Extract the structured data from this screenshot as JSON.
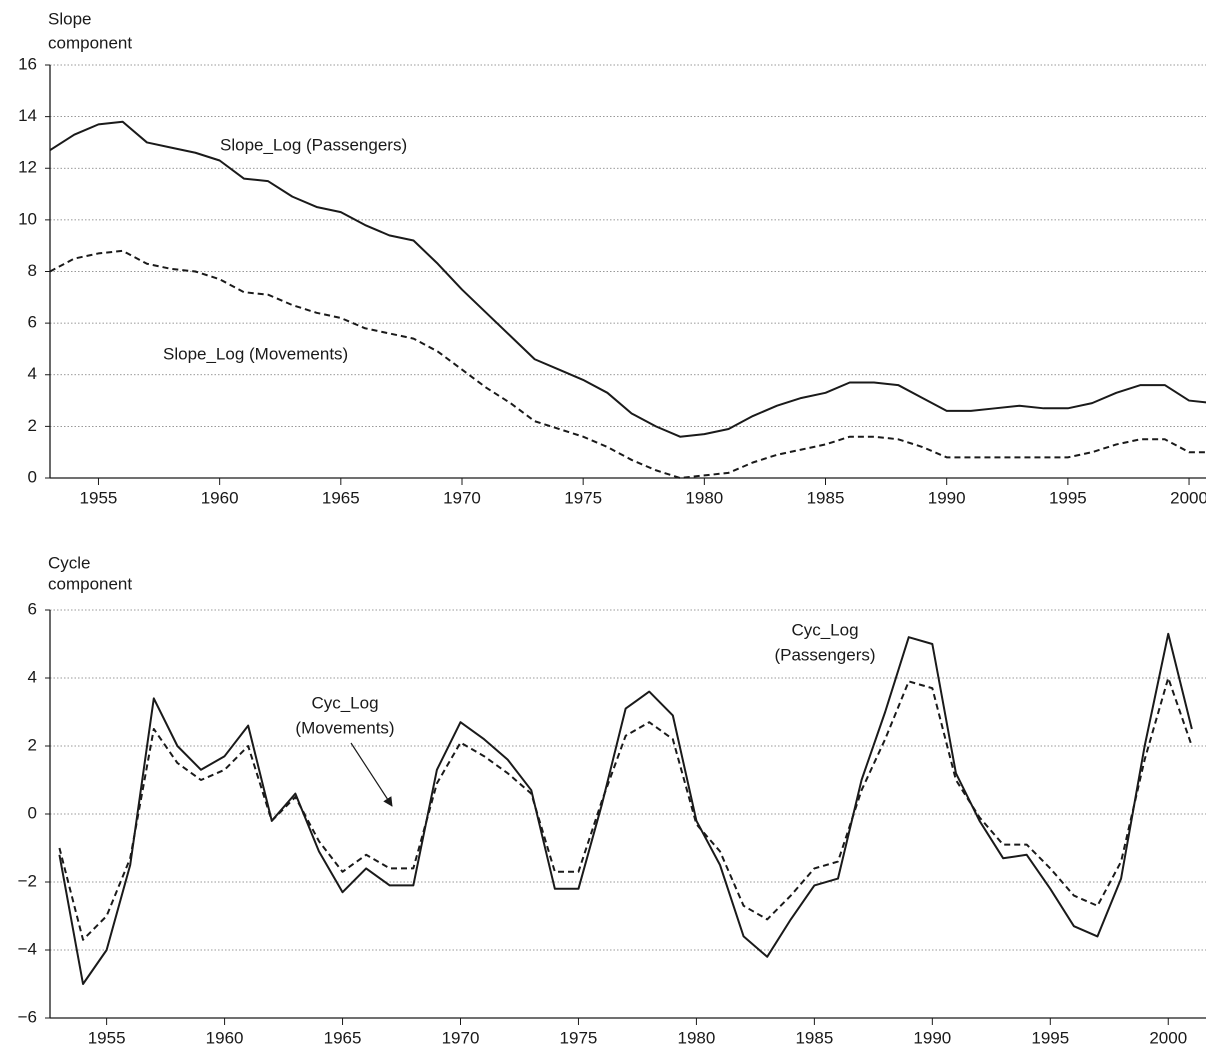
{
  "chart_data": [
    {
      "type": "line",
      "ylabel": [
        "Slope",
        "component"
      ],
      "x": [
        1953,
        1954,
        1955,
        1956,
        1957,
        1958,
        1959,
        1960,
        1961,
        1962,
        1963,
        1964,
        1965,
        1966,
        1967,
        1968,
        1969,
        1970,
        1971,
        1972,
        1973,
        1974,
        1975,
        1976,
        1977,
        1978,
        1979,
        1980,
        1981,
        1982,
        1983,
        1984,
        1985,
        1986,
        1987,
        1988,
        1989,
        1990,
        1991,
        1992,
        1993,
        1994,
        1995,
        1996,
        1997,
        1998,
        1999,
        2000,
        2001
      ],
      "xlim": [
        1953,
        2000.7
      ],
      "xticks": [
        1955,
        1960,
        1965,
        1970,
        1975,
        1980,
        1985,
        1990,
        1995,
        2000
      ],
      "ylim": [
        0,
        16
      ],
      "yticks": [
        0,
        2,
        4,
        6,
        8,
        10,
        12,
        14,
        16
      ],
      "grid": true,
      "series": [
        {
          "label": [
            "Slope_Log (Passengers)"
          ],
          "color": "#1a1a1a",
          "dashed": false,
          "values": [
            12.7,
            13.3,
            13.7,
            13.8,
            13.0,
            12.8,
            12.6,
            12.3,
            11.6,
            11.5,
            10.9,
            10.5,
            10.3,
            9.8,
            9.4,
            9.2,
            8.3,
            7.3,
            6.4,
            5.5,
            4.6,
            4.2,
            3.8,
            3.3,
            2.5,
            2.0,
            1.6,
            1.7,
            1.9,
            2.4,
            2.8,
            3.1,
            3.3,
            3.7,
            3.7,
            3.6,
            3.1,
            2.6,
            2.6,
            2.7,
            2.8,
            2.7,
            2.7,
            2.9,
            3.3,
            3.6,
            3.6,
            3.0,
            2.9
          ]
        },
        {
          "label": [
            "Slope_Log (Movements)"
          ],
          "color": "#1a1a1a",
          "dashed": true,
          "values": [
            8.0,
            8.5,
            8.7,
            8.8,
            8.3,
            8.1,
            8.0,
            7.7,
            7.2,
            7.1,
            6.7,
            6.4,
            6.2,
            5.8,
            5.6,
            5.4,
            4.9,
            4.2,
            3.5,
            2.9,
            2.2,
            1.9,
            1.6,
            1.2,
            0.7,
            0.3,
            0,
            0.1,
            0.2,
            0.6,
            0.9,
            1.1,
            1.3,
            1.6,
            1.6,
            1.5,
            1.2,
            0.8,
            0.8,
            0.8,
            0.8,
            0.8,
            0.8,
            1.0,
            1.3,
            1.5,
            1.5,
            1.0,
            1.0
          ]
        }
      ]
    },
    {
      "type": "line",
      "ylabel": [
        "Cycle",
        "component"
      ],
      "x": [
        1953,
        1954,
        1955,
        1956,
        1957,
        1958,
        1959,
        1960,
        1961,
        1962,
        1963,
        1964,
        1965,
        1966,
        1967,
        1968,
        1969,
        1970,
        1971,
        1972,
        1973,
        1974,
        1975,
        1976,
        1977,
        1978,
        1979,
        1980,
        1981,
        1982,
        1983,
        1984,
        1985,
        1986,
        1987,
        1988,
        1989,
        1990,
        1991,
        1992,
        1993,
        1994,
        1995,
        1996,
        1997,
        1998,
        1999,
        2000,
        2001
      ],
      "xlim": [
        1952.6,
        2001.6
      ],
      "xticks": [
        1955,
        1960,
        1965,
        1970,
        1975,
        1980,
        1985,
        1990,
        1995,
        2000
      ],
      "ylim": [
        -6,
        6
      ],
      "yticks": [
        {
          "value": -6,
          "label": "−6"
        },
        {
          "value": -4,
          "label": "−4"
        },
        {
          "value": -2,
          "label": "−2"
        },
        0,
        2,
        4,
        6
      ],
      "grid": true,
      "series": [
        {
          "label": [
            "Cyc_Log",
            "(Passengers)"
          ],
          "color": "#1a1a1a",
          "dashed": false,
          "values": [
            -1.2,
            -5.0,
            -4.0,
            -1.5,
            3.4,
            2.0,
            1.3,
            1.7,
            2.6,
            -0.2,
            0.6,
            -1.1,
            -2.3,
            -1.6,
            -2.1,
            -2.1,
            1.3,
            2.7,
            2.2,
            1.6,
            0.7,
            -2.2,
            -2.2,
            0.3,
            3.1,
            3.6,
            2.9,
            -0.2,
            -1.5,
            -3.6,
            -4.2,
            -3.1,
            -2.1,
            -1.9,
            1.0,
            3.0,
            5.2,
            5.0,
            1.2,
            -0.2,
            -1.3,
            -1.2,
            -2.2,
            -3.3,
            -3.6,
            -1.9,
            2.0,
            5.3,
            2.5
          ]
        },
        {
          "label": [
            "Cyc_Log",
            "(Movements)"
          ],
          "color": "#1a1a1a",
          "dashed": true,
          "values": [
            -1.0,
            -3.7,
            -3.0,
            -1.3,
            2.5,
            1.5,
            1.0,
            1.3,
            2.0,
            -0.2,
            0.5,
            -0.8,
            -1.7,
            -1.2,
            -1.6,
            -1.6,
            0.9,
            2.1,
            1.7,
            1.2,
            0.6,
            -1.7,
            -1.7,
            0.4,
            2.3,
            2.7,
            2.2,
            -0.3,
            -1.1,
            -2.7,
            -3.1,
            -2.4,
            -1.6,
            -1.4,
            0.7,
            2.2,
            3.9,
            3.7,
            1.0,
            -0.1,
            -0.9,
            -0.9,
            -1.6,
            -2.4,
            -2.7,
            -1.4,
            1.6,
            4.0,
            2.0
          ]
        }
      ]
    }
  ]
}
